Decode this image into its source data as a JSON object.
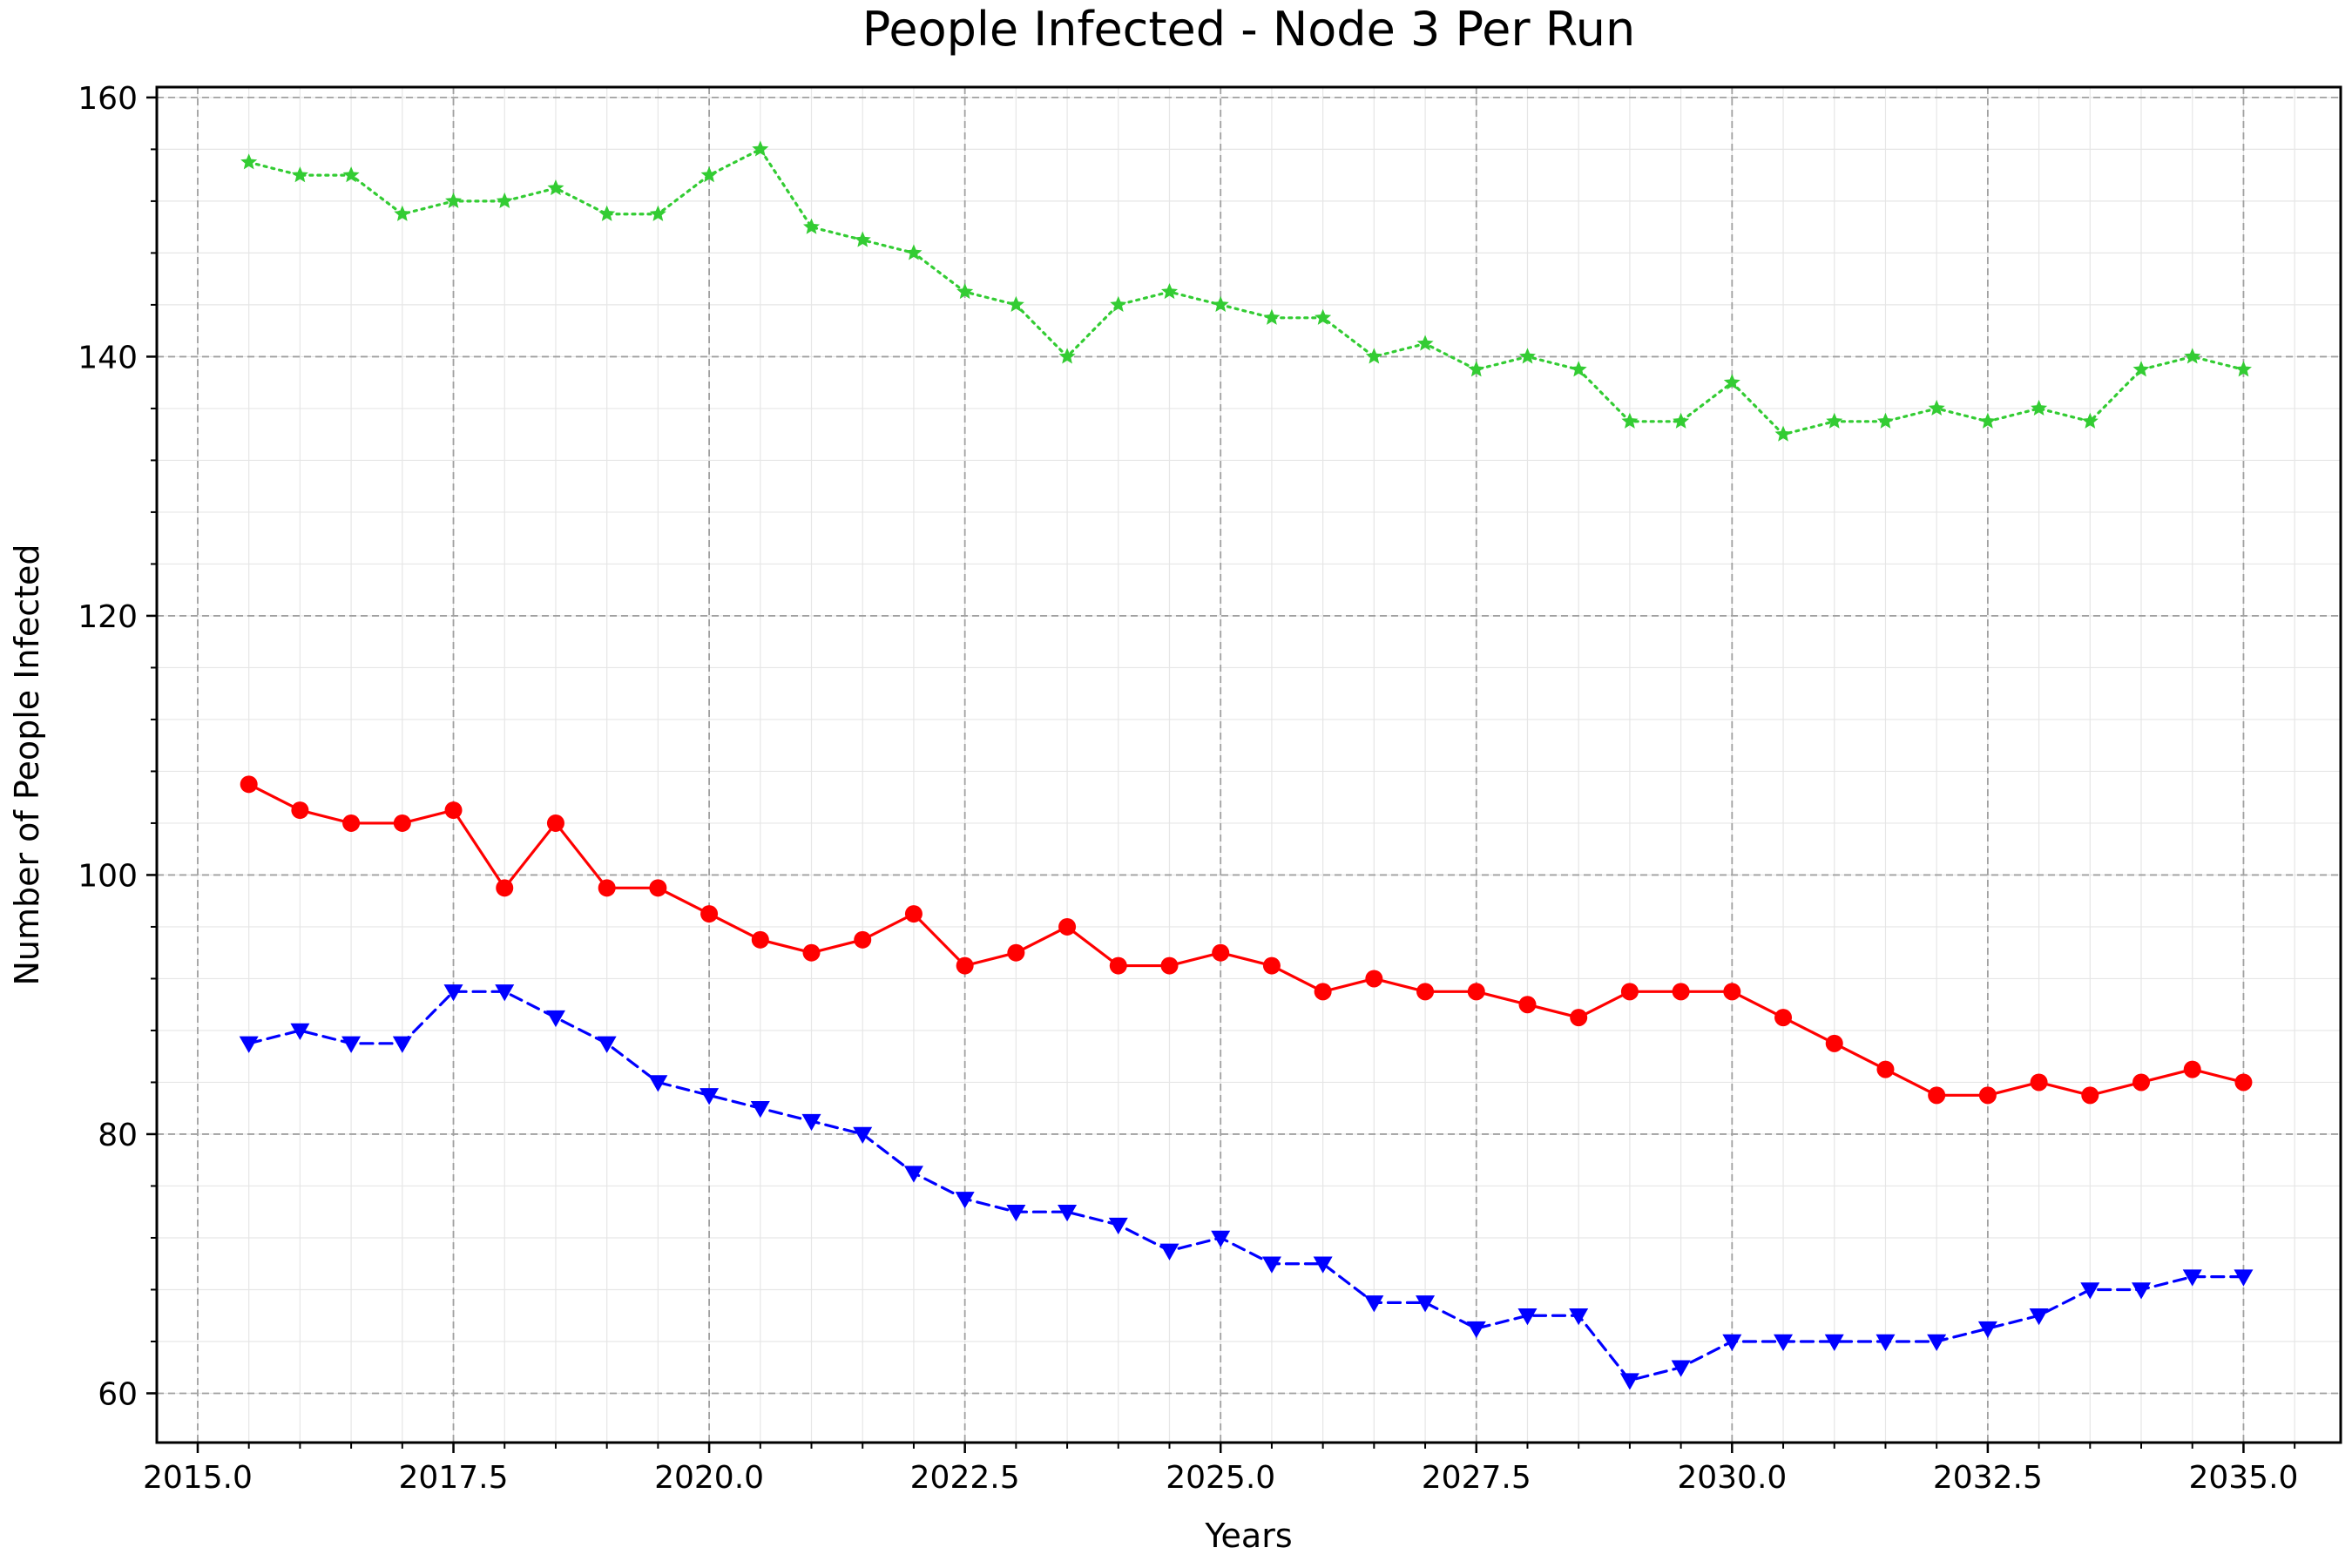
{
  "chart_data": {
    "type": "line",
    "title": "People Infected - Node 3 Per Run",
    "xlabel": "Years",
    "ylabel": "Number of People Infected",
    "xlim": [
      2014.6,
      2035.95
    ],
    "ylim": [
      56.2,
      160.8
    ],
    "x_ticks": [
      2015.0,
      2017.5,
      2020.0,
      2022.5,
      2025.0,
      2027.5,
      2030.0,
      2032.5,
      2035.0
    ],
    "x_tick_labels": [
      "2015.0",
      "2017.5",
      "2020.0",
      "2022.5",
      "2025.0",
      "2027.5",
      "2030.0",
      "2032.5",
      "2035.0"
    ],
    "y_ticks": [
      60,
      80,
      100,
      120,
      140,
      160
    ],
    "y_tick_labels": [
      "60",
      "80",
      "100",
      "120",
      "140",
      "160"
    ],
    "grid": true,
    "legend": "none",
    "x": [
      2015.5,
      2016.0,
      2016.5,
      2017.0,
      2017.5,
      2018.0,
      2018.5,
      2019.0,
      2019.5,
      2020.0,
      2020.5,
      2021.0,
      2021.5,
      2022.0,
      2022.5,
      2023.0,
      2023.5,
      2024.0,
      2024.5,
      2025.0,
      2025.5,
      2026.0,
      2026.5,
      2027.0,
      2027.5,
      2028.0,
      2028.5,
      2029.0,
      2029.5,
      2030.0,
      2030.5,
      2031.0,
      2031.5,
      2032.0,
      2032.5,
      2033.0,
      2033.5,
      2034.0,
      2034.5,
      2035.0
    ],
    "series": [
      {
        "color": "#ff0000",
        "line_style": "solid",
        "marker": "circle",
        "values": [
          107,
          105,
          104,
          104,
          105,
          99,
          104,
          99,
          99,
          97,
          95,
          94,
          95,
          97,
          93,
          94,
          96,
          93,
          93,
          94,
          93,
          91,
          92,
          91,
          91,
          90,
          89,
          91,
          91,
          91,
          89,
          87,
          85,
          83,
          83,
          84,
          83,
          84,
          85,
          84
        ]
      },
      {
        "color": "#0000ff",
        "line_style": "dashed",
        "marker": "triangle-down",
        "values": [
          87,
          88,
          87,
          87,
          91,
          91,
          89,
          87,
          84,
          83,
          82,
          81,
          80,
          77,
          75,
          74,
          74,
          73,
          71,
          72,
          70,
          70,
          67,
          67,
          65,
          66,
          66,
          61,
          62,
          64,
          64,
          64,
          64,
          64,
          65,
          66,
          68,
          68,
          69,
          69
        ]
      },
      {
        "color": "#33cc33",
        "line_style": "dotted",
        "marker": "star",
        "values": [
          155,
          154,
          154,
          151,
          152,
          152,
          153,
          151,
          151,
          154,
          156,
          150,
          149,
          148,
          145,
          144,
          140,
          144,
          145,
          144,
          143,
          143,
          140,
          141,
          139,
          140,
          139,
          135,
          135,
          138,
          134,
          135,
          135,
          136,
          135,
          136,
          135,
          139,
          140,
          139
        ]
      }
    ]
  }
}
